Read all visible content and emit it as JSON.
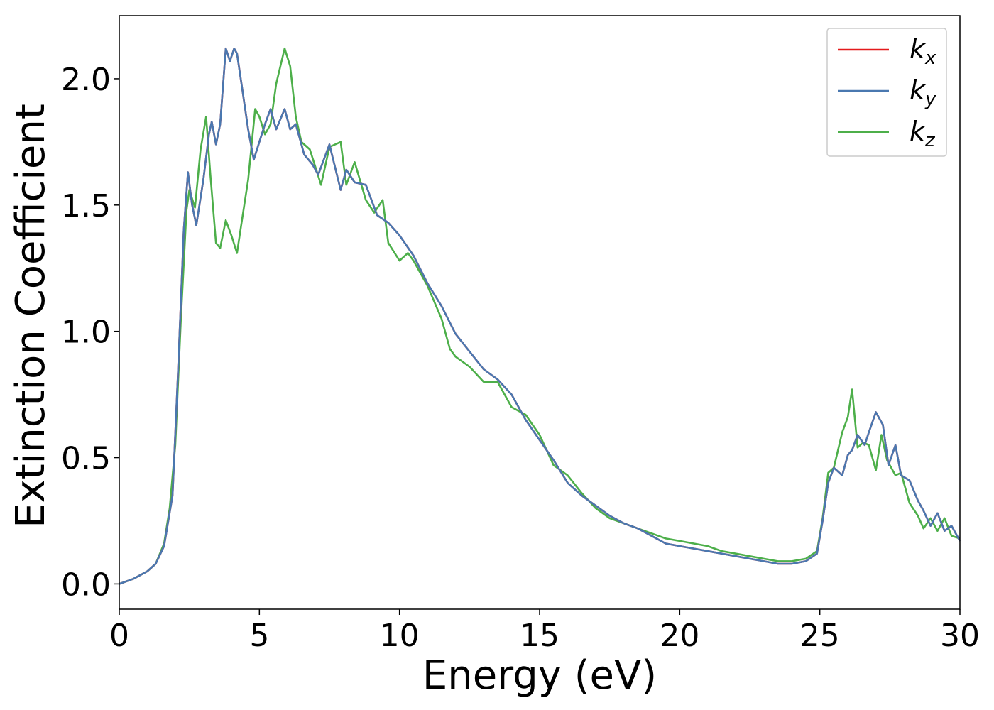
{
  "chart_data": {
    "type": "line",
    "xlabel": "Energy (eV)",
    "ylabel": "Extinction Coefficient",
    "xlim": [
      0,
      30
    ],
    "ylim": [
      -0.1,
      2.25
    ],
    "xticks": [
      0,
      5,
      10,
      15,
      20,
      25,
      30
    ],
    "xtick_labels": [
      "0",
      "5",
      "10",
      "15",
      "20",
      "25",
      "30"
    ],
    "yticks": [
      0.0,
      0.5,
      1.0,
      1.5,
      2.0
    ],
    "ytick_labels": [
      "0.0",
      "0.5",
      "1.0",
      "1.5",
      "2.0"
    ],
    "grid": false,
    "legend": "top-right",
    "series": [
      {
        "name": "k",
        "sub": "x",
        "color": "#e41a1c",
        "x": [
          0,
          0.5,
          1.0,
          1.3,
          1.6,
          1.9,
          2.1,
          2.3,
          2.45,
          2.6,
          2.75,
          3.0,
          3.2,
          3.3,
          3.45,
          3.6,
          3.8,
          3.95,
          4.1,
          4.2,
          4.4,
          4.6,
          4.8,
          5.0,
          5.2,
          5.4,
          5.6,
          5.9,
          6.1,
          6.3,
          6.6,
          6.9,
          7.1,
          7.5,
          7.9,
          8.1,
          8.4,
          8.8,
          9.2,
          9.6,
          10.0,
          10.5,
          11.0,
          11.5,
          12.0,
          12.5,
          13.0,
          13.5,
          14.0,
          14.5,
          15.0,
          15.5,
          16.0,
          16.5,
          17.0,
          17.5,
          18.0,
          18.5,
          19.0,
          19.5,
          20.0,
          20.5,
          21.0,
          21.5,
          22.0,
          22.5,
          23.0,
          23.5,
          24.0,
          24.5,
          24.9,
          25.1,
          25.3,
          25.5,
          25.8,
          26.0,
          26.15,
          26.35,
          26.6,
          26.75,
          27.0,
          27.25,
          27.45,
          27.7,
          27.9,
          28.2,
          28.5,
          28.7,
          28.95,
          29.2,
          29.45,
          29.7,
          30.0
        ],
        "y": [
          0.0,
          0.02,
          0.05,
          0.08,
          0.15,
          0.35,
          0.85,
          1.4,
          1.63,
          1.5,
          1.42,
          1.6,
          1.78,
          1.83,
          1.74,
          1.82,
          2.12,
          2.07,
          2.12,
          2.1,
          1.95,
          1.8,
          1.68,
          1.75,
          1.82,
          1.88,
          1.8,
          1.88,
          1.8,
          1.82,
          1.7,
          1.66,
          1.62,
          1.74,
          1.56,
          1.64,
          1.59,
          1.58,
          1.46,
          1.43,
          1.38,
          1.3,
          1.19,
          1.1,
          0.99,
          0.92,
          0.85,
          0.81,
          0.75,
          0.65,
          0.57,
          0.49,
          0.4,
          0.35,
          0.31,
          0.27,
          0.24,
          0.22,
          0.19,
          0.16,
          0.15,
          0.14,
          0.13,
          0.12,
          0.11,
          0.1,
          0.09,
          0.08,
          0.08,
          0.09,
          0.12,
          0.25,
          0.4,
          0.46,
          0.43,
          0.51,
          0.53,
          0.59,
          0.55,
          0.6,
          0.68,
          0.63,
          0.47,
          0.55,
          0.43,
          0.41,
          0.33,
          0.29,
          0.23,
          0.28,
          0.21,
          0.23,
          0.17
        ]
      },
      {
        "name": "k",
        "sub": "y",
        "color": "#4a78b0",
        "x": [
          0,
          0.5,
          1.0,
          1.3,
          1.6,
          1.9,
          2.1,
          2.3,
          2.45,
          2.6,
          2.75,
          3.0,
          3.2,
          3.3,
          3.45,
          3.6,
          3.8,
          3.95,
          4.1,
          4.2,
          4.4,
          4.6,
          4.8,
          5.0,
          5.2,
          5.4,
          5.6,
          5.9,
          6.1,
          6.3,
          6.6,
          6.9,
          7.1,
          7.5,
          7.9,
          8.1,
          8.4,
          8.8,
          9.2,
          9.6,
          10.0,
          10.5,
          11.0,
          11.5,
          12.0,
          12.5,
          13.0,
          13.5,
          14.0,
          14.5,
          15.0,
          15.5,
          16.0,
          16.5,
          17.0,
          17.5,
          18.0,
          18.5,
          19.0,
          19.5,
          20.0,
          20.5,
          21.0,
          21.5,
          22.0,
          22.5,
          23.0,
          23.5,
          24.0,
          24.5,
          24.9,
          25.1,
          25.3,
          25.5,
          25.8,
          26.0,
          26.15,
          26.35,
          26.6,
          26.75,
          27.0,
          27.25,
          27.45,
          27.7,
          27.9,
          28.2,
          28.5,
          28.7,
          28.95,
          29.2,
          29.45,
          29.7,
          30.0
        ],
        "y": [
          0.0,
          0.02,
          0.05,
          0.08,
          0.15,
          0.35,
          0.85,
          1.4,
          1.63,
          1.5,
          1.42,
          1.6,
          1.78,
          1.83,
          1.74,
          1.82,
          2.12,
          2.07,
          2.12,
          2.1,
          1.95,
          1.8,
          1.68,
          1.75,
          1.82,
          1.88,
          1.8,
          1.88,
          1.8,
          1.82,
          1.7,
          1.66,
          1.62,
          1.74,
          1.56,
          1.64,
          1.59,
          1.58,
          1.46,
          1.43,
          1.38,
          1.3,
          1.19,
          1.1,
          0.99,
          0.92,
          0.85,
          0.81,
          0.75,
          0.65,
          0.57,
          0.49,
          0.4,
          0.35,
          0.31,
          0.27,
          0.24,
          0.22,
          0.19,
          0.16,
          0.15,
          0.14,
          0.13,
          0.12,
          0.11,
          0.1,
          0.09,
          0.08,
          0.08,
          0.09,
          0.12,
          0.25,
          0.4,
          0.46,
          0.43,
          0.51,
          0.53,
          0.59,
          0.55,
          0.6,
          0.68,
          0.63,
          0.47,
          0.55,
          0.43,
          0.41,
          0.33,
          0.29,
          0.23,
          0.28,
          0.21,
          0.23,
          0.17
        ]
      },
      {
        "name": "k",
        "sub": "z",
        "color": "#4daf4a",
        "x": [
          0,
          0.5,
          1.0,
          1.3,
          1.6,
          1.8,
          2.0,
          2.2,
          2.4,
          2.5,
          2.7,
          2.9,
          3.1,
          3.25,
          3.45,
          3.6,
          3.8,
          4.0,
          4.2,
          4.35,
          4.6,
          4.85,
          5.0,
          5.2,
          5.4,
          5.6,
          5.9,
          6.1,
          6.3,
          6.5,
          6.8,
          7.2,
          7.5,
          7.9,
          8.1,
          8.4,
          8.8,
          9.1,
          9.4,
          9.6,
          10.0,
          10.3,
          10.5,
          11.0,
          11.5,
          11.8,
          12.0,
          12.5,
          13.0,
          13.5,
          14.0,
          14.5,
          15.0,
          15.5,
          16.0,
          16.5,
          17.0,
          17.5,
          18.0,
          18.5,
          19.0,
          19.5,
          20.0,
          20.5,
          21.0,
          21.5,
          22.0,
          22.5,
          23.0,
          23.5,
          24.0,
          24.5,
          24.9,
          25.1,
          25.3,
          25.5,
          25.8,
          26.0,
          26.15,
          26.35,
          26.55,
          26.75,
          27.0,
          27.2,
          27.4,
          27.7,
          27.9,
          28.2,
          28.5,
          28.7,
          28.95,
          29.2,
          29.45,
          29.7,
          30.0
        ],
        "y": [
          0.0,
          0.02,
          0.05,
          0.08,
          0.16,
          0.3,
          0.55,
          1.05,
          1.48,
          1.56,
          1.49,
          1.72,
          1.85,
          1.62,
          1.35,
          1.33,
          1.44,
          1.38,
          1.31,
          1.42,
          1.6,
          1.88,
          1.85,
          1.78,
          1.82,
          1.98,
          2.12,
          2.05,
          1.85,
          1.75,
          1.72,
          1.58,
          1.73,
          1.75,
          1.58,
          1.67,
          1.52,
          1.47,
          1.52,
          1.35,
          1.28,
          1.31,
          1.28,
          1.18,
          1.05,
          0.93,
          0.9,
          0.86,
          0.8,
          0.8,
          0.7,
          0.67,
          0.59,
          0.47,
          0.43,
          0.36,
          0.3,
          0.26,
          0.24,
          0.22,
          0.2,
          0.18,
          0.17,
          0.16,
          0.15,
          0.13,
          0.12,
          0.11,
          0.1,
          0.09,
          0.09,
          0.1,
          0.13,
          0.26,
          0.44,
          0.46,
          0.6,
          0.66,
          0.77,
          0.54,
          0.56,
          0.55,
          0.45,
          0.59,
          0.49,
          0.43,
          0.44,
          0.32,
          0.27,
          0.22,
          0.26,
          0.21,
          0.26,
          0.19,
          0.18
        ]
      }
    ]
  }
}
